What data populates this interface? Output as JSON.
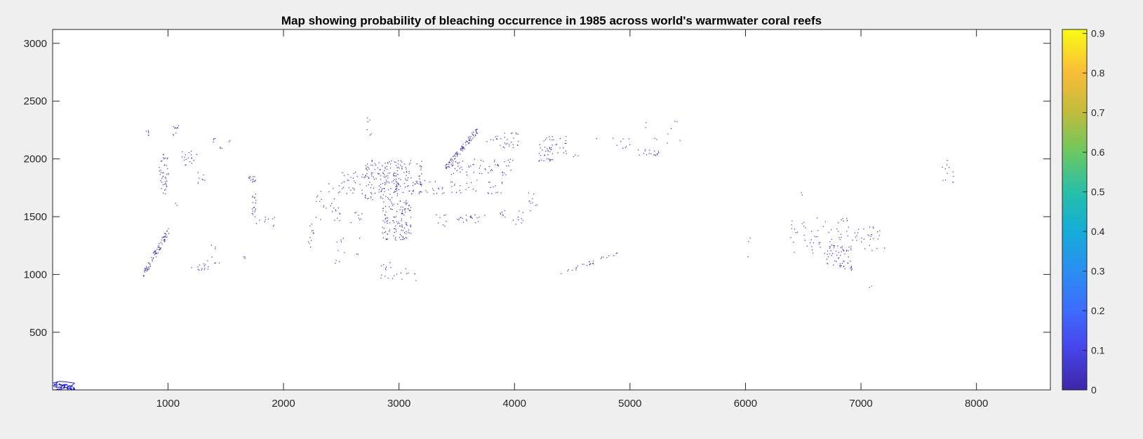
{
  "window": {
    "background": "#f0f0f0"
  },
  "chart_data": {
    "type": "heatmap",
    "title": "Map showing probability of bleaching occurrence in 1985 across world's warmwater coral reefs",
    "xlabel": "",
    "ylabel": "",
    "xlim": [
      1,
      8640
    ],
    "ylim": [
      1,
      3120
    ],
    "x_ticks": [
      1000,
      2000,
      3000,
      4000,
      5000,
      6000,
      7000,
      8000
    ],
    "x_tick_labels": [
      "1000",
      "2000",
      "3000",
      "4000",
      "5000",
      "6000",
      "7000",
      "8000"
    ],
    "y_ticks": [
      500,
      1000,
      1500,
      2000,
      2500,
      3000
    ],
    "y_tick_labels": [
      "500",
      "1000",
      "1500",
      "2000",
      "2500",
      "3000"
    ],
    "grid": false,
    "background": "#ffffff",
    "colorbar": {
      "position": "right",
      "colormap": "parula",
      "range": [
        0,
        0.91
      ],
      "ticks": [
        0,
        0.1,
        0.2,
        0.3,
        0.4,
        0.5,
        0.6,
        0.7,
        0.8,
        0.9
      ],
      "tick_labels": [
        "0",
        "0.1",
        "0.2",
        "0.3",
        "0.4",
        "0.5",
        "0.6",
        "0.7",
        "0.8",
        "0.9"
      ],
      "stops": [
        {
          "v": 0.0,
          "color": "#3e26a8"
        },
        {
          "v": 0.12,
          "color": "#4746eb"
        },
        {
          "v": 0.22,
          "color": "#3e6bfd"
        },
        {
          "v": 0.33,
          "color": "#2b8ef2"
        },
        {
          "v": 0.44,
          "color": "#15acd8"
        },
        {
          "v": 0.55,
          "color": "#28bfa9"
        },
        {
          "v": 0.66,
          "color": "#6cc861"
        },
        {
          "v": 0.77,
          "color": "#c0bc3d"
        },
        {
          "v": 0.88,
          "color": "#f9bc38"
        },
        {
          "v": 1.0,
          "color": "#f9fb15"
        }
      ]
    },
    "point_color": "#3e26a8",
    "point_value": 0.05,
    "reef_clusters": [
      {
        "x": [
          800,
          840
        ],
        "y": [
          2190,
          2250
        ],
        "n": 6
      },
      {
        "x": [
          920,
          1000
        ],
        "y": [
          1700,
          2060
        ],
        "n": 45
      },
      {
        "x": [
          1040,
          1100
        ],
        "y": [
          2180,
          2290
        ],
        "n": 10
      },
      {
        "x": [
          1100,
          1250
        ],
        "y": [
          1950,
          2080
        ],
        "n": 18
      },
      {
        "x": [
          1250,
          1320
        ],
        "y": [
          1780,
          1900
        ],
        "n": 8
      },
      {
        "x": [
          1380,
          1420
        ],
        "y": [
          2140,
          2180
        ],
        "n": 4
      },
      {
        "x": [
          1440,
          1470
        ],
        "y": [
          2080,
          2110
        ],
        "n": 3
      },
      {
        "x": [
          1520,
          1540
        ],
        "y": [
          2150,
          2170
        ],
        "n": 2
      },
      {
        "x": [
          1060,
          1080
        ],
        "y": [
          1600,
          1640
        ],
        "n": 2
      },
      {
        "x": [
          780,
          1010
        ],
        "y": [
          990,
          1400
        ],
        "n": 90,
        "diag": true
      },
      {
        "x": [
          1200,
          1350
        ],
        "y": [
          1040,
          1100
        ],
        "n": 14
      },
      {
        "x": [
          1330,
          1460
        ],
        "y": [
          1100,
          1260
        ],
        "n": 8
      },
      {
        "x": [
          1650,
          1680
        ],
        "y": [
          1130,
          1160
        ],
        "n": 3
      },
      {
        "x": [
          1690,
          1760
        ],
        "y": [
          1800,
          1860
        ],
        "n": 14
      },
      {
        "x": [
          1720,
          1760
        ],
        "y": [
          1500,
          1700
        ],
        "n": 18
      },
      {
        "x": [
          1760,
          1920
        ],
        "y": [
          1420,
          1500
        ],
        "n": 10
      },
      {
        "x": [
          2200,
          2260
        ],
        "y": [
          1200,
          1450
        ],
        "n": 12
      },
      {
        "x": [
          2260,
          2500
        ],
        "y": [
          1450,
          1800
        ],
        "n": 30
      },
      {
        "x": [
          2500,
          2700
        ],
        "y": [
          1700,
          1900
        ],
        "n": 30
      },
      {
        "x": [
          2720,
          2760
        ],
        "y": [
          2200,
          2380
        ],
        "n": 6
      },
      {
        "x": [
          2700,
          3000
        ],
        "y": [
          1650,
          2000
        ],
        "n": 140
      },
      {
        "x": [
          2950,
          3200
        ],
        "y": [
          1700,
          2000
        ],
        "n": 80
      },
      {
        "x": [
          2850,
          3100
        ],
        "y": [
          1300,
          1650
        ],
        "n": 130
      },
      {
        "x": [
          2580,
          2700
        ],
        "y": [
          1450,
          1550
        ],
        "n": 8
      },
      {
        "x": [
          2780,
          3150
        ],
        "y": [
          950,
          1120
        ],
        "n": 22
      },
      {
        "x": [
          2420,
          2660
        ],
        "y": [
          1100,
          1350
        ],
        "n": 12
      },
      {
        "x": [
          3150,
          3400
        ],
        "y": [
          1700,
          1820
        ],
        "n": 22
      },
      {
        "x": [
          3300,
          3420
        ],
        "y": [
          1420,
          1520
        ],
        "n": 8
      },
      {
        "x": [
          3400,
          3680
        ],
        "y": [
          1920,
          2260
        ],
        "n": 100,
        "diag": true
      },
      {
        "x": [
          3450,
          3900
        ],
        "y": [
          1850,
          2000
        ],
        "n": 50
      },
      {
        "x": [
          3400,
          3900
        ],
        "y": [
          1700,
          1820
        ],
        "n": 30
      },
      {
        "x": [
          3500,
          3800
        ],
        "y": [
          1450,
          1520
        ],
        "n": 22
      },
      {
        "x": [
          3750,
          3880
        ],
        "y": [
          2100,
          2200
        ],
        "n": 10
      },
      {
        "x": [
          3900,
          4050
        ],
        "y": [
          2100,
          2230
        ],
        "n": 22
      },
      {
        "x": [
          3900,
          3990
        ],
        "y": [
          1850,
          2000
        ],
        "n": 10
      },
      {
        "x": [
          3870,
          4080
        ],
        "y": [
          1430,
          1560
        ],
        "n": 16
      },
      {
        "x": [
          4100,
          4200
        ],
        "y": [
          1550,
          1720
        ],
        "n": 10
      },
      {
        "x": [
          4200,
          4330
        ],
        "y": [
          1980,
          2130
        ],
        "n": 30
      },
      {
        "x": [
          4250,
          4450
        ],
        "y": [
          2050,
          2200
        ],
        "n": 25
      },
      {
        "x": [
          4500,
          4550
        ],
        "y": [
          2020,
          2040
        ],
        "n": 3
      },
      {
        "x": [
          4400,
          4900
        ],
        "y": [
          1010,
          1190
        ],
        "n": 28,
        "diag": true
      },
      {
        "x": [
          4700,
          5000
        ],
        "y": [
          2050,
          2200
        ],
        "n": 10
      },
      {
        "x": [
          5050,
          5250
        ],
        "y": [
          2030,
          2100
        ],
        "n": 18
      },
      {
        "x": [
          5100,
          5450
        ],
        "y": [
          2120,
          2350
        ],
        "n": 10
      },
      {
        "x": [
          6000,
          6040
        ],
        "y": [
          1100,
          1440
        ],
        "n": 3
      },
      {
        "x": [
          6380,
          6900
        ],
        "y": [
          1150,
          1500
        ],
        "n": 60
      },
      {
        "x": [
          6700,
          6920
        ],
        "y": [
          1040,
          1260
        ],
        "n": 60
      },
      {
        "x": [
          6900,
          7200
        ],
        "y": [
          1200,
          1420
        ],
        "n": 30
      },
      {
        "x": [
          7070,
          7100
        ],
        "y": [
          890,
          910
        ],
        "n": 2
      },
      {
        "x": [
          7700,
          7800
        ],
        "y": [
          1800,
          2110
        ],
        "n": 12
      },
      {
        "x": [
          6450,
          6500
        ],
        "y": [
          1690,
          1720
        ],
        "n": 2
      }
    ],
    "corner_artifact": {
      "x": [
        0,
        190
      ],
      "y": [
        0,
        80
      ],
      "n": 70
    }
  }
}
